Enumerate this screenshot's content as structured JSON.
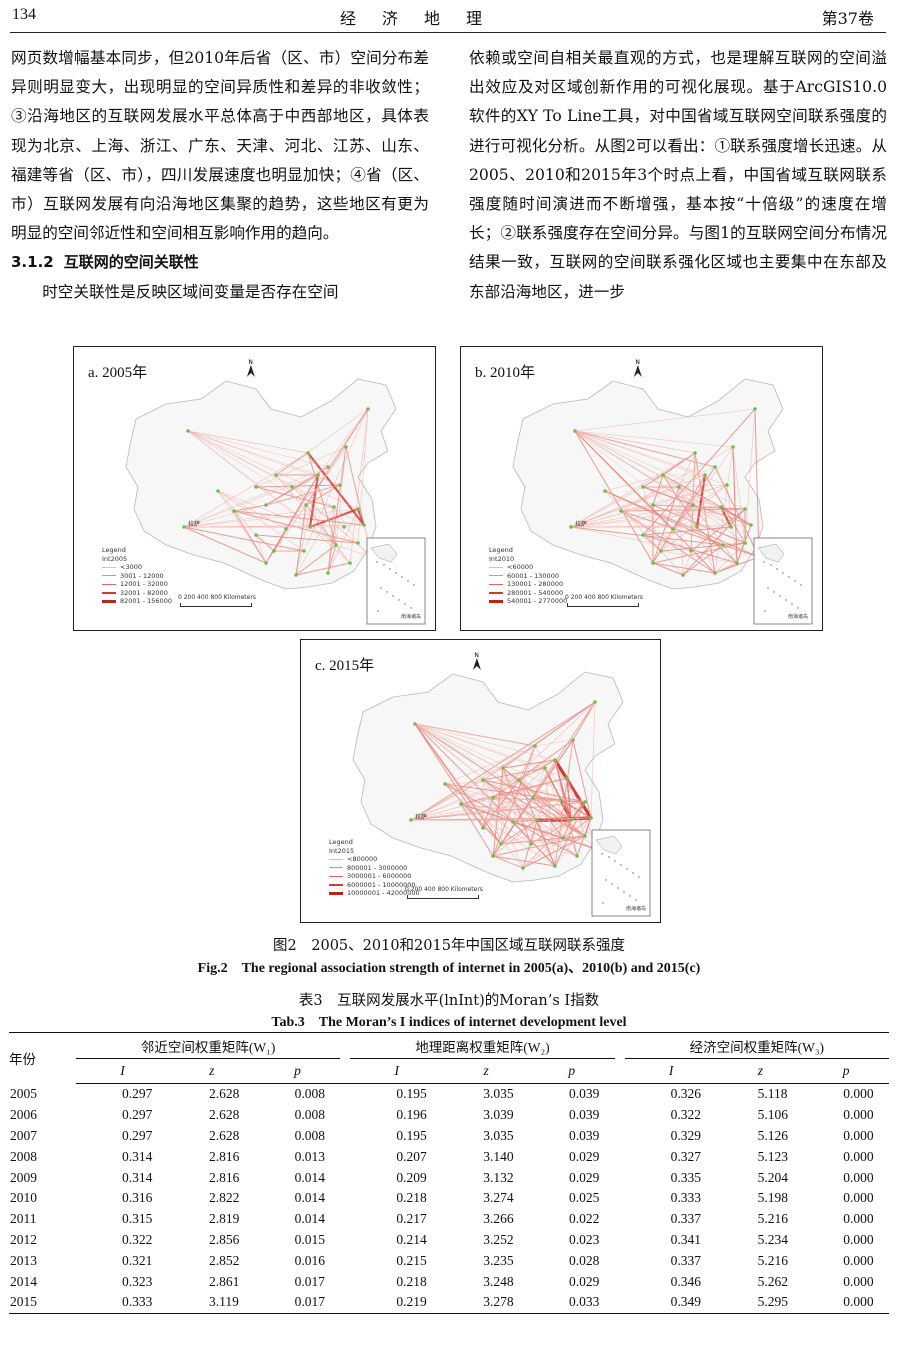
{
  "header": {
    "page_number": "134",
    "journal": "经济地理",
    "volume": "第37卷"
  },
  "left_col": {
    "para1": "网页数增幅基本同步，但2010年后省（区、市）空间分布差异则明显变大，出现明显的空间异质性和差异的非收敛性；③沿海地区的互联网发展水平总体高于中西部地区，具体表现为北京、上海、浙江、广东、天津、河北、江苏、山东、福建等省（区、市），四川发展速度也明显加快；④省（区、市）互联网发展有向沿海地区集聚的趋势，这些地区有更为明显的空间邻近性和空间相互影响作用的趋向。",
    "section_number": "3.1.2",
    "section_title": "互联网的空间关联性",
    "para2": "时空关联性是反映区域间变量是否存在空间"
  },
  "right_col": {
    "para": "依赖或空间自相关最直观的方式，也是理解互联网的空间溢出效应及对区域创新作用的可视化展现。基于ArcGIS10.0软件的XY To Line工具，对中国省域互联网空间联系强度的进行可视化分析。从图2可以看出：①联系强度增长迅速。从2005、2010和2015年3个时点上看，中国省域互联网联系强度随时间演进而不断增强，基本按“十倍级”的速度在增长；②联系强度存在空间分异。与图1的互联网空间分布情况结果一致，互联网的空间联系强化区域也主要集中在东部及东部沿海地区，进一步"
  },
  "maps": [
    {
      "label": "a. 2005年",
      "legend_title": "Legend",
      "legend_field": "Int2005",
      "classes": [
        "<3000",
        "3001 - 12000",
        "12001 - 32000",
        "32001 - 82000",
        "82001 - 156000"
      ],
      "scale_ticks": "0  200 400     800 Kilometers",
      "inset_caption": "南海诸岛",
      "north": "N",
      "tibet_label": "拉萨"
    },
    {
      "label": "b. 2010年",
      "legend_title": "Legend",
      "legend_field": "Int2010",
      "classes": [
        "<60000",
        "60001 - 130000",
        "130001 - 280000",
        "280001 - 540000",
        "540001 - 2770000"
      ],
      "scale_ticks": "0  200 400     800 Kilometers",
      "inset_caption": "南海诸岛",
      "north": "N",
      "tibet_label": "拉萨"
    },
    {
      "label": "c. 2015年",
      "legend_title": "Legend",
      "legend_field": "Int2015",
      "classes": [
        "<800000",
        "800001 - 3000000",
        "3000001 - 6000000",
        "6000001 - 10000000",
        "10000001 - 42000000"
      ],
      "scale_ticks": "0  200 400     800 Kilometers",
      "inset_caption": "南海诸岛",
      "north": "N",
      "tibet_label": "拉萨"
    }
  ],
  "colors": {
    "flow_light": "#f2b5ad",
    "flow_mid": "#e0665a",
    "flow_dark": "#c0221a",
    "node": "#6cbf4a"
  },
  "figure": {
    "caption_cn": "图2　2005、2010和2015年中国区域互联网联系强度",
    "caption_en": "Fig.2　The regional association strength of internet in 2005(a)、2010(b) and 2015(c)"
  },
  "table": {
    "caption_cn": "表3　互联网发展水平(lnInt)的Moran’s I指数",
    "caption_en": "Tab.3　The Moran’s I indices of  internet development level",
    "year_header": "年份",
    "groups": [
      "邻近空间权重矩阵(W₁)",
      "地理距离权重矩阵(W₂)",
      "经济空间权重矩阵(W₃)"
    ],
    "subheaders": [
      "I",
      "z",
      "p"
    ],
    "rows": [
      [
        "2005",
        "0.297",
        "2.628",
        "0.008",
        "0.195",
        "3.035",
        "0.039",
        "0.326",
        "5.118",
        "0.000"
      ],
      [
        "2006",
        "0.297",
        "2.628",
        "0.008",
        "0.196",
        "3.039",
        "0.039",
        "0.322",
        "5.106",
        "0.000"
      ],
      [
        "2007",
        "0.297",
        "2.628",
        "0.008",
        "0.195",
        "3.035",
        "0.039",
        "0.329",
        "5.126",
        "0.000"
      ],
      [
        "2008",
        "0.314",
        "2.816",
        "0.013",
        "0.207",
        "3.140",
        "0.029",
        "0.327",
        "5.123",
        "0.000"
      ],
      [
        "2009",
        "0.314",
        "2.816",
        "0.014",
        "0.209",
        "3.132",
        "0.029",
        "0.335",
        "5.204",
        "0.000"
      ],
      [
        "2010",
        "0.316",
        "2.822",
        "0.014",
        "0.218",
        "3.274",
        "0.025",
        "0.333",
        "5.198",
        "0.000"
      ],
      [
        "2011",
        "0.315",
        "2.819",
        "0.014",
        "0.217",
        "3.266",
        "0.022",
        "0.337",
        "5.216",
        "0.000"
      ],
      [
        "2012",
        "0.322",
        "2.856",
        "0.015",
        "0.214",
        "3.252",
        "0.023",
        "0.341",
        "5.234",
        "0.000"
      ],
      [
        "2013",
        "0.321",
        "2.852",
        "0.016",
        "0.215",
        "3.235",
        "0.028",
        "0.337",
        "5.216",
        "0.000"
      ],
      [
        "2014",
        "0.323",
        "2.861",
        "0.017",
        "0.218",
        "3.248",
        "0.029",
        "0.346",
        "5.262",
        "0.000"
      ],
      [
        "2015",
        "0.333",
        "3.119",
        "0.017",
        "0.219",
        "3.278",
        "0.033",
        "0.349",
        "5.295",
        "0.000"
      ]
    ]
  }
}
